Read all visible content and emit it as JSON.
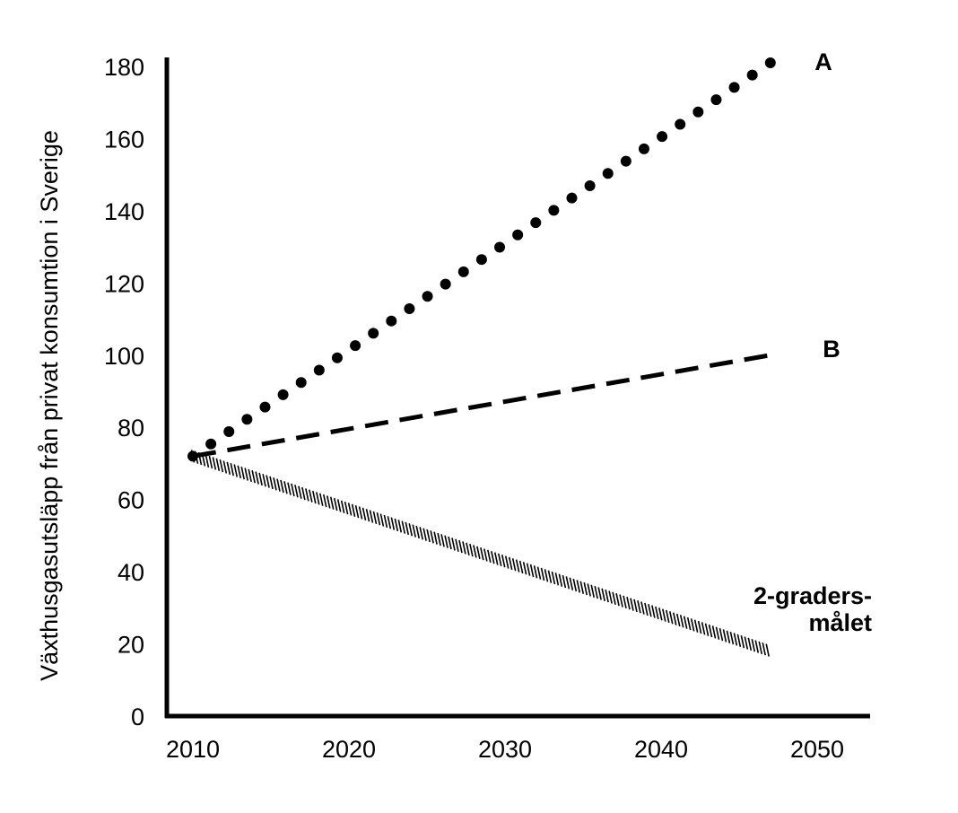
{
  "chart_data": {
    "type": "line",
    "ylabel": "Växthusgasutsläpp från privat konsumtion i Sverige",
    "xlabel": "",
    "x_ticks": [
      "2010",
      "2020",
      "2030",
      "2040",
      "2050"
    ],
    "y_ticks": [
      "0",
      "20",
      "40",
      "60",
      "80",
      "100",
      "120",
      "140",
      "160",
      "180"
    ],
    "xlim": [
      2009,
      2052
    ],
    "ylim": [
      0,
      180
    ],
    "grid": false,
    "legend": "direct labels at line ends",
    "series": [
      {
        "name": "A",
        "style": "dotted",
        "x": [
          2010,
          2047
        ],
        "y": [
          72,
          181
        ]
      },
      {
        "name": "B",
        "style": "dashed",
        "x": [
          2010,
          2047
        ],
        "y": [
          72,
          100
        ]
      },
      {
        "name": "2-graders-målet",
        "name_lines": [
          "2-graders-",
          "målet"
        ],
        "style": "hatched",
        "x": [
          2010,
          2047
        ],
        "y": [
          72,
          18
        ]
      }
    ],
    "colors": {
      "line": "#000000",
      "background": "#ffffff"
    }
  }
}
